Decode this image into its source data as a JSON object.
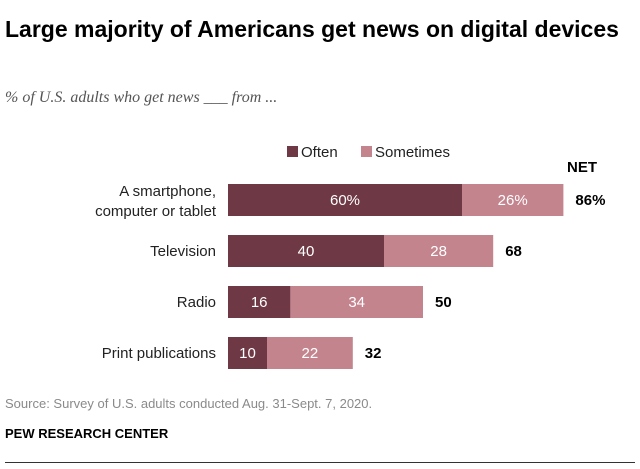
{
  "title": "Large majority of Americans get news on digital devices",
  "subtitle": "% of U.S. adults who get news ___ from ...",
  "source": "Source: Survey of U.S. adults conducted Aug. 31-Sept. 7, 2020.",
  "organization": "PEW RESEARCH CENTER",
  "chart_data": {
    "type": "bar",
    "orientation": "horizontal",
    "stacked": true,
    "categories": [
      [
        "A smartphone,",
        "computer or tablet"
      ],
      [
        "Television"
      ],
      [
        "Radio"
      ],
      [
        "Print publications"
      ]
    ],
    "series": [
      {
        "name": "Often",
        "values": [
          60,
          40,
          16,
          10
        ],
        "color": "#6e3845",
        "labels": [
          "60%",
          "40",
          "16",
          "10"
        ]
      },
      {
        "name": "Sometimes",
        "values": [
          26,
          28,
          34,
          22
        ],
        "color": "#c4848e",
        "labels": [
          "26%",
          "28",
          "34",
          "22"
        ]
      }
    ],
    "net_header": "NET",
    "net_values": [
      86,
      68,
      50,
      32
    ],
    "net_labels": [
      "86%",
      "68",
      "50",
      "32"
    ],
    "legend_position": "top",
    "grid": false
  }
}
